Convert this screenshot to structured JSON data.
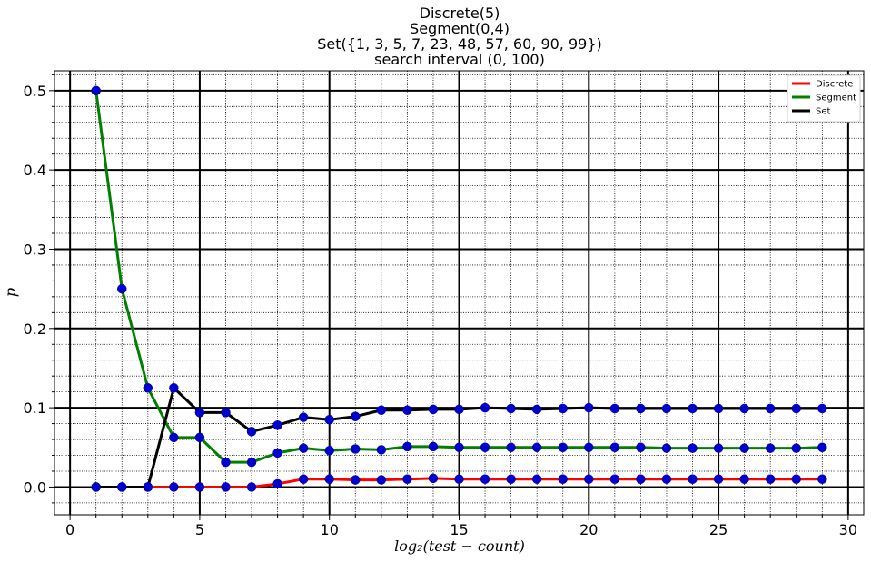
{
  "chart_data": {
    "type": "line",
    "title_lines": [
      "Discrete(5)",
      "Segment(0,4)",
      "Set({1, 3, 5, 7, 23, 48, 57, 60, 90, 99})",
      "search interval (0, 100)"
    ],
    "xlabel": "log₂(test − count)",
    "ylabel": "p",
    "xlim": [
      -0.6,
      30.6
    ],
    "ylim": [
      -0.035,
      0.525
    ],
    "x_ticks": [
      0,
      5,
      10,
      15,
      20,
      25,
      30
    ],
    "x_tick_labels": [
      "0",
      "5",
      "10",
      "15",
      "20",
      "25",
      "30"
    ],
    "y_ticks": [
      0.0,
      0.1,
      0.2,
      0.3,
      0.4,
      0.5
    ],
    "y_tick_labels": [
      "0.0",
      "0.1",
      "0.2",
      "0.3",
      "0.4",
      "0.5"
    ],
    "grid": true,
    "legend_position": "top-right",
    "marker_color": "#0000cc",
    "x": [
      1,
      2,
      3,
      4,
      5,
      6,
      7,
      8,
      9,
      10,
      11,
      12,
      13,
      14,
      15,
      16,
      17,
      18,
      19,
      20,
      21,
      22,
      23,
      24,
      25,
      26,
      27,
      28,
      29
    ],
    "series": [
      {
        "name": "Discrete",
        "color": "#ff0000",
        "values": [
          0,
          0,
          0,
          0,
          0,
          0,
          0,
          0.004,
          0.01,
          0.01,
          0.009,
          0.009,
          0.01,
          0.011,
          0.01,
          0.01,
          0.01,
          0.01,
          0.01,
          0.01,
          0.01,
          0.01,
          0.01,
          0.01,
          0.01,
          0.01,
          0.01,
          0.01,
          0.01
        ]
      },
      {
        "name": "Segment",
        "color": "#008000",
        "values": [
          0.5,
          0.25,
          0.125,
          0.0625,
          0.0625,
          0.03125,
          0.03125,
          0.043,
          0.049,
          0.046,
          0.048,
          0.047,
          0.051,
          0.051,
          0.05,
          0.05,
          0.05,
          0.05,
          0.05,
          0.05,
          0.05,
          0.05,
          0.049,
          0.049,
          0.049,
          0.049,
          0.049,
          0.049,
          0.05
        ]
      },
      {
        "name": "Set",
        "color": "#000000",
        "values": [
          0,
          0,
          0,
          0.125,
          0.094,
          0.094,
          0.07,
          0.078,
          0.088,
          0.085,
          0.089,
          0.097,
          0.097,
          0.098,
          0.098,
          0.1,
          0.099,
          0.098,
          0.099,
          0.1,
          0.099,
          0.099,
          0.099,
          0.099,
          0.099,
          0.099,
          0.099,
          0.099,
          0.099
        ]
      }
    ]
  }
}
